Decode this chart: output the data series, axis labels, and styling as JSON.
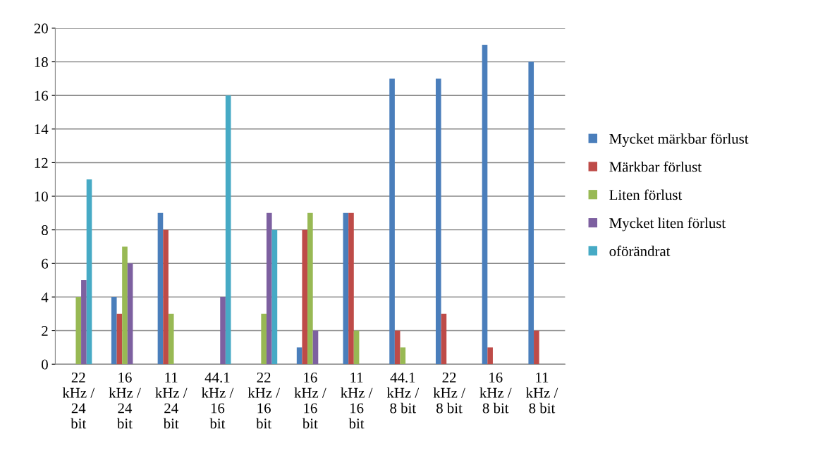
{
  "chart_data": {
    "type": "bar",
    "categories": [
      "22 kHz / 24 bit",
      "16 kHz / 24 bit",
      "11 kHz / 24 bit",
      "44.1 kHz / 16 bit",
      "22 kHz / 16 bit",
      "16 kHz / 16 bit",
      "11 kHz / 16 bit",
      "44.1 kHz / 8 bit",
      "22 kHz / 8 bit",
      "16 kHz / 8 bit",
      "11 kHz / 8 bit"
    ],
    "series": [
      {
        "name": "Mycket märkbar förlust",
        "color": "#4a7ebb",
        "values": [
          0,
          4,
          9,
          0,
          0,
          1,
          9,
          17,
          17,
          19,
          18
        ]
      },
      {
        "name": "Märkbar förlust",
        "color": "#be4b48",
        "values": [
          0,
          3,
          8,
          0,
          0,
          8,
          9,
          2,
          3,
          1,
          2
        ]
      },
      {
        "name": "Liten förlust",
        "color": "#98b954",
        "values": [
          4,
          7,
          3,
          0,
          3,
          9,
          2,
          1,
          0,
          0,
          0
        ]
      },
      {
        "name": "Mycket liten förlust",
        "color": "#7d60a0",
        "values": [
          5,
          6,
          0,
          4,
          9,
          2,
          0,
          0,
          0,
          0,
          0
        ]
      },
      {
        "name": "oförändrat",
        "color": "#46aac5",
        "values": [
          11,
          0,
          0,
          16,
          8,
          0,
          0,
          0,
          0,
          0,
          0
        ]
      }
    ],
    "ylim": [
      0,
      20
    ],
    "yticks": [
      0,
      2,
      4,
      6,
      8,
      10,
      12,
      14,
      16,
      18,
      20
    ],
    "grid": "y",
    "legend": "right"
  }
}
